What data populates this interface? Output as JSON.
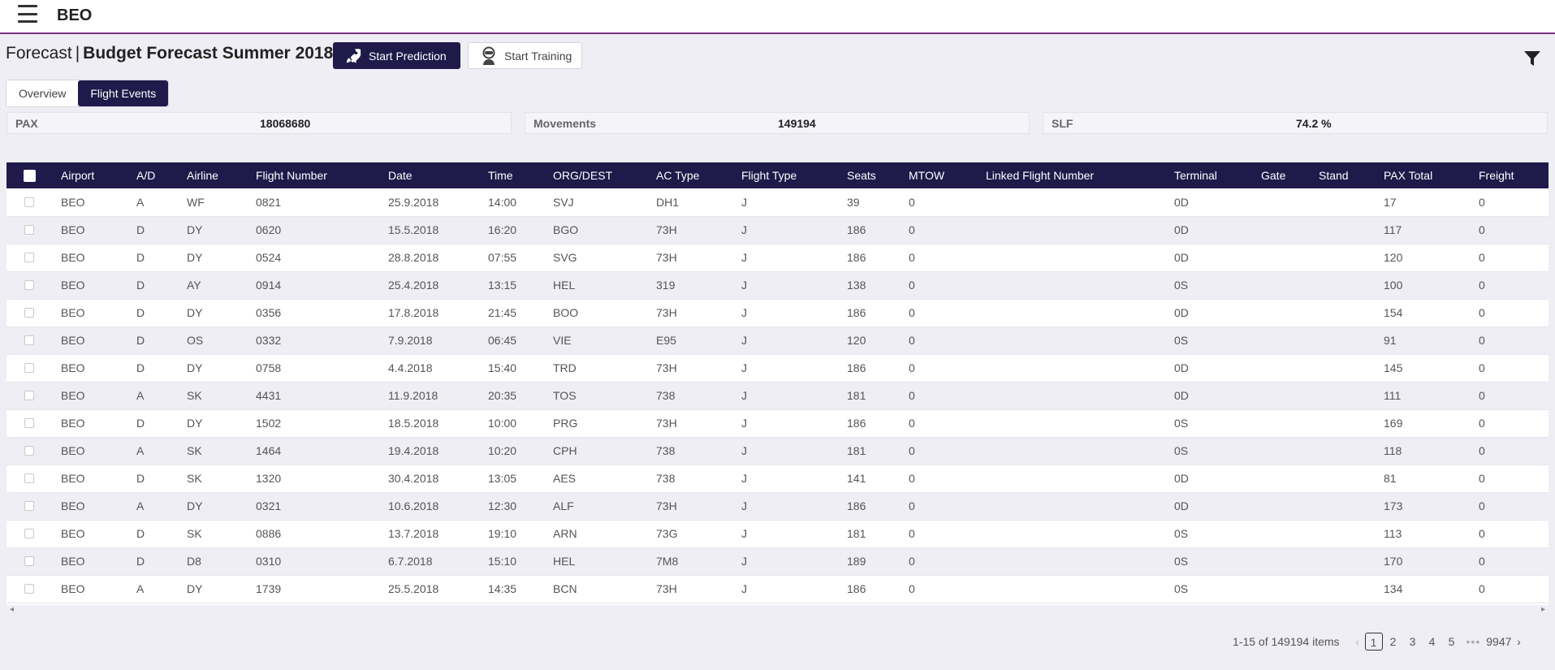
{
  "app": {
    "name": "BEO"
  },
  "header": {
    "prefix": "Forecast",
    "separator": "|",
    "title": "Budget Forecast Summer 2018",
    "start_prediction_label": "Start Prediction",
    "start_training_label": "Start Training"
  },
  "tabs": [
    {
      "label": "Overview",
      "active": false
    },
    {
      "label": "Flight Events",
      "active": true
    }
  ],
  "kpis": [
    {
      "label": "PAX",
      "value": "18068680"
    },
    {
      "label": "Movements",
      "value": "149194"
    },
    {
      "label": "SLF",
      "value": "74.2 %"
    }
  ],
  "table": {
    "columns": [
      "Airport",
      "A/D",
      "Airline",
      "Flight Number",
      "Date",
      "Time",
      "ORG/DEST",
      "AC Type",
      "Flight Type",
      "Seats",
      "MTOW",
      "Linked Flight Number",
      "Terminal",
      "Gate",
      "Stand",
      "PAX Total",
      "Freight"
    ],
    "rows": [
      [
        "BEO",
        "A",
        "WF",
        "0821",
        "25.9.2018",
        "14:00",
        "SVJ",
        "DH1",
        "J",
        "39",
        "0",
        "",
        "0D",
        "",
        "",
        "17",
        "0"
      ],
      [
        "BEO",
        "D",
        "DY",
        "0620",
        "15.5.2018",
        "16:20",
        "BGO",
        "73H",
        "J",
        "186",
        "0",
        "",
        "0D",
        "",
        "",
        "117",
        "0"
      ],
      [
        "BEO",
        "D",
        "DY",
        "0524",
        "28.8.2018",
        "07:55",
        "SVG",
        "73H",
        "J",
        "186",
        "0",
        "",
        "0D",
        "",
        "",
        "120",
        "0"
      ],
      [
        "BEO",
        "D",
        "AY",
        "0914",
        "25.4.2018",
        "13:15",
        "HEL",
        "319",
        "J",
        "138",
        "0",
        "",
        "0S",
        "",
        "",
        "100",
        "0"
      ],
      [
        "BEO",
        "D",
        "DY",
        "0356",
        "17.8.2018",
        "21:45",
        "BOO",
        "73H",
        "J",
        "186",
        "0",
        "",
        "0D",
        "",
        "",
        "154",
        "0"
      ],
      [
        "BEO",
        "D",
        "OS",
        "0332",
        "7.9.2018",
        "06:45",
        "VIE",
        "E95",
        "J",
        "120",
        "0",
        "",
        "0S",
        "",
        "",
        "91",
        "0"
      ],
      [
        "BEO",
        "D",
        "DY",
        "0758",
        "4.4.2018",
        "15:40",
        "TRD",
        "73H",
        "J",
        "186",
        "0",
        "",
        "0D",
        "",
        "",
        "145",
        "0"
      ],
      [
        "BEO",
        "A",
        "SK",
        "4431",
        "11.9.2018",
        "20:35",
        "TOS",
        "738",
        "J",
        "181",
        "0",
        "",
        "0D",
        "",
        "",
        "111",
        "0"
      ],
      [
        "BEO",
        "D",
        "DY",
        "1502",
        "18.5.2018",
        "10:00",
        "PRG",
        "73H",
        "J",
        "186",
        "0",
        "",
        "0S",
        "",
        "",
        "169",
        "0"
      ],
      [
        "BEO",
        "A",
        "SK",
        "1464",
        "19.4.2018",
        "10:20",
        "CPH",
        "738",
        "J",
        "181",
        "0",
        "",
        "0S",
        "",
        "",
        "118",
        "0"
      ],
      [
        "BEO",
        "D",
        "SK",
        "1320",
        "30.4.2018",
        "13:05",
        "AES",
        "738",
        "J",
        "141",
        "0",
        "",
        "0D",
        "",
        "",
        "81",
        "0"
      ],
      [
        "BEO",
        "A",
        "DY",
        "0321",
        "10.6.2018",
        "12:30",
        "ALF",
        "73H",
        "J",
        "186",
        "0",
        "",
        "0D",
        "",
        "",
        "173",
        "0"
      ],
      [
        "BEO",
        "D",
        "SK",
        "0886",
        "13.7.2018",
        "19:10",
        "ARN",
        "73G",
        "J",
        "181",
        "0",
        "",
        "0S",
        "",
        "",
        "113",
        "0"
      ],
      [
        "BEO",
        "D",
        "D8",
        "0310",
        "6.7.2018",
        "15:10",
        "HEL",
        "7M8",
        "J",
        "189",
        "0",
        "",
        "0S",
        "",
        "",
        "170",
        "0"
      ],
      [
        "BEO",
        "A",
        "DY",
        "1739",
        "25.5.2018",
        "14:35",
        "BCN",
        "73H",
        "J",
        "186",
        "0",
        "",
        "0S",
        "",
        "",
        "134",
        "0"
      ]
    ]
  },
  "pagination": {
    "summary": "1-15 of 149194 items",
    "pages": [
      "1",
      "2",
      "3",
      "4",
      "5"
    ],
    "current": "1",
    "ellipsis": "•••",
    "last_page": "9947",
    "prev": "‹",
    "next": "›"
  },
  "scroll": {
    "left": "◂",
    "right": "▸"
  }
}
